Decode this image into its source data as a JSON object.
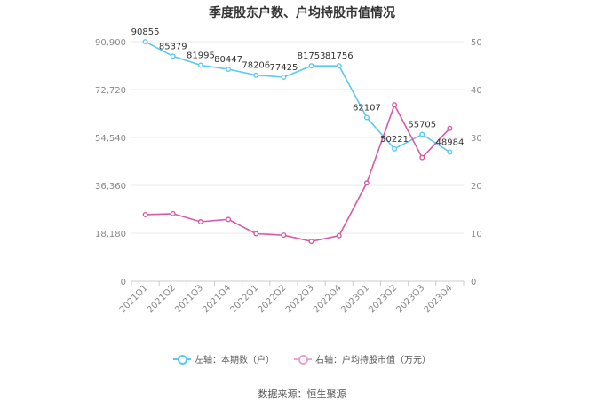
{
  "chart_data": {
    "type": "line",
    "title": "季度股东户数、户均持股市值情况",
    "categories": [
      "2021Q1",
      "2021Q2",
      "2021Q3",
      "2021Q4",
      "2022Q1",
      "2022Q2",
      "2022Q3",
      "2022Q4",
      "2023Q1",
      "2023Q2",
      "2023Q3",
      "2023Q4"
    ],
    "left_axis": {
      "ticks": [
        "0",
        "18,180",
        "36,360",
        "54,540",
        "72,720",
        "90,900"
      ],
      "ylim": [
        0,
        90900
      ]
    },
    "right_axis": {
      "ticks": [
        "0",
        "10",
        "20",
        "30",
        "40",
        "50"
      ],
      "ylim": [
        0,
        50
      ]
    },
    "grid": true,
    "legend_position": "bottom",
    "series": [
      {
        "name": "左轴：本期数（户）",
        "axis": "left",
        "color": "#5bc8f5",
        "values": [
          90855,
          85379,
          81995,
          80447,
          78206,
          77425,
          81753,
          81756,
          62107,
          50221,
          55705,
          48984
        ],
        "labels": [
          "90855",
          "85379",
          "81995",
          "80447",
          "78206",
          "77425",
          "81753",
          "81756",
          "62107",
          "50221",
          "55705",
          "48984"
        ]
      },
      {
        "name": "右轴：户均持股市值（万元）",
        "axis": "right",
        "color": "#d85aa8",
        "values": [
          13.9,
          14.1,
          12.4,
          12.9,
          9.9,
          9.6,
          8.3,
          9.5,
          20.5,
          36.8,
          25.8,
          31.9
        ]
      }
    ]
  },
  "source": "数据来源：恒生聚源"
}
